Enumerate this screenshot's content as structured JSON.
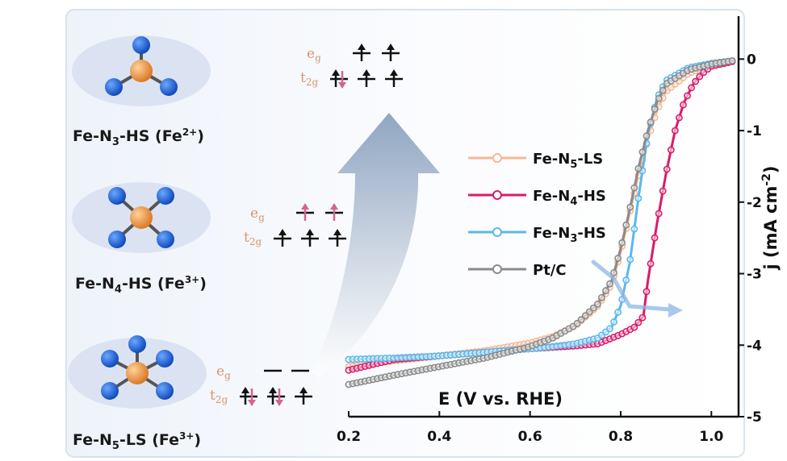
{
  "structures": [
    {
      "label": "Fe-N3-HS (Fe2+)",
      "coordination": 3,
      "color": "#f0a020"
    },
    {
      "label": "Fe-N4-HS (Fe3+)",
      "coordination": 4,
      "color": "#f0843a"
    },
    {
      "label": "Fe-N5-LS (Fe3+)",
      "coordination": 5,
      "color": "#f0843a"
    }
  ],
  "spin_diagrams": [
    {
      "eg_label": "eg",
      "t2g_label": "t2g",
      "eg": [
        "up",
        "up"
      ],
      "t2g": [
        "updown",
        "up",
        "up"
      ]
    },
    {
      "eg_label": "eg",
      "t2g_label": "t2g",
      "eg": [
        "up",
        "up"
      ],
      "t2g": [
        "up",
        "up",
        "up"
      ]
    },
    {
      "eg_label": "eg",
      "t2g_label": "t2g",
      "eg": [
        "empty",
        "empty"
      ],
      "t2g": [
        "updown",
        "updown",
        "up"
      ]
    }
  ],
  "chart_data": {
    "type": "line",
    "xlabel": "E (V vs. RHE)",
    "ylabel": "j (mA cm-2)",
    "xlim": [
      0.2,
      1.06
    ],
    "ylim": [
      -5,
      0.15
    ],
    "xticks": [
      "0.2",
      "0.4",
      "0.6",
      "0.8",
      "1.0"
    ],
    "yticks": [
      "0",
      "-1",
      "-2",
      "-3",
      "-4",
      "-5"
    ],
    "legend_position": "center",
    "series": [
      {
        "name": "Fe-N5-LS",
        "color": "#f5b894",
        "x": [
          0.2,
          0.3,
          0.4,
          0.5,
          0.6,
          0.65,
          0.7,
          0.75,
          0.78,
          0.8,
          0.82,
          0.84,
          0.86,
          0.88,
          0.9,
          0.95,
          1.0,
          1.05
        ],
        "y": [
          -4.3,
          -4.22,
          -4.15,
          -4.08,
          -3.97,
          -3.88,
          -3.73,
          -3.45,
          -3.15,
          -2.7,
          -2.15,
          -1.6,
          -1.12,
          -0.72,
          -0.45,
          -0.2,
          -0.08,
          -0.02
        ]
      },
      {
        "name": "Fe-N4-HS",
        "color": "#d81b6a",
        "x": [
          0.2,
          0.3,
          0.4,
          0.5,
          0.6,
          0.7,
          0.75,
          0.8,
          0.83,
          0.85,
          0.86,
          0.88,
          0.9,
          0.92,
          0.94,
          0.96,
          0.98,
          1.0,
          1.05
        ],
        "y": [
          -4.35,
          -4.2,
          -4.15,
          -4.1,
          -4.05,
          -4.01,
          -3.98,
          -3.85,
          -3.75,
          -3.6,
          -3.1,
          -2.3,
          -1.6,
          -1.0,
          -0.6,
          -0.35,
          -0.2,
          -0.1,
          -0.03
        ]
      },
      {
        "name": "Fe-N3-HS",
        "color": "#5bb8ec",
        "x": [
          0.2,
          0.3,
          0.4,
          0.5,
          0.6,
          0.65,
          0.7,
          0.75,
          0.78,
          0.8,
          0.82,
          0.84,
          0.86,
          0.88,
          0.9,
          0.95,
          1.0,
          1.05
        ],
        "y": [
          -4.2,
          -4.18,
          -4.15,
          -4.1,
          -4.05,
          -4.02,
          -3.98,
          -3.9,
          -3.75,
          -3.45,
          -2.85,
          -1.9,
          -1.05,
          -0.55,
          -0.3,
          -0.12,
          -0.06,
          -0.02
        ]
      },
      {
        "name": "Pt/C",
        "color": "#8a8a8a",
        "x": [
          0.2,
          0.3,
          0.4,
          0.5,
          0.6,
          0.65,
          0.7,
          0.75,
          0.78,
          0.8,
          0.82,
          0.84,
          0.86,
          0.88,
          0.9,
          0.95,
          1.0,
          1.05
        ],
        "y": [
          -4.55,
          -4.42,
          -4.3,
          -4.18,
          -4.02,
          -3.9,
          -3.72,
          -3.42,
          -3.1,
          -2.65,
          -2.1,
          -1.5,
          -1.0,
          -0.6,
          -0.35,
          -0.15,
          -0.07,
          -0.02
        ]
      }
    ]
  }
}
